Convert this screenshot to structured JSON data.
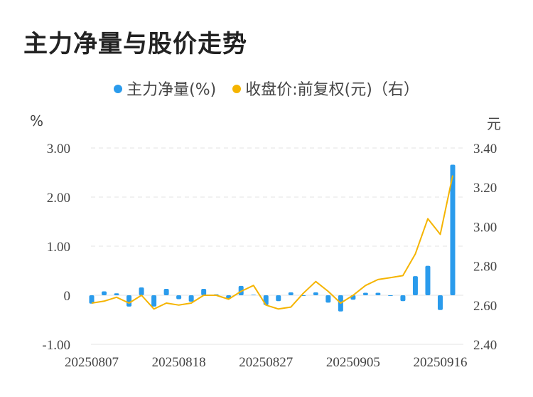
{
  "title": "主力净量与股价走势",
  "legend": {
    "series1": "主力净量(%)",
    "series2": "收盘价:前复权(元)（右）"
  },
  "units": {
    "left": "%",
    "right": "元"
  },
  "colors": {
    "bar": "#2a9bec",
    "line": "#f5b400",
    "grid": "#e3e3e3"
  },
  "chart_data": {
    "type": "bar+line",
    "x_ticks": [
      "20250807",
      "20250818",
      "20250827",
      "20250905",
      "20250916"
    ],
    "x_tick_positions": [
      0,
      7,
      14,
      21,
      28
    ],
    "y_left_ticks": [
      "3.00",
      "2.00",
      "1.00",
      "0",
      "-1.00"
    ],
    "y_left_range": [
      -1.0,
      3.0
    ],
    "y_right_ticks": [
      "3.40",
      "3.20",
      "3.00",
      "2.80",
      "2.60",
      "2.40"
    ],
    "y_right_range": [
      2.4,
      3.4
    ],
    "series": [
      {
        "name": "主力净量(%)",
        "type": "bar",
        "axis": "left",
        "values": [
          -0.17,
          0.08,
          0.04,
          -0.23,
          0.16,
          -0.23,
          0.13,
          -0.08,
          -0.13,
          0.13,
          0.02,
          -0.07,
          0.19,
          0.01,
          -0.2,
          -0.12,
          0.06,
          0.0,
          0.06,
          -0.15,
          -0.33,
          -0.09,
          0.05,
          0.05,
          0.0,
          -0.12,
          0.39,
          0.6,
          -0.3,
          2.66
        ]
      },
      {
        "name": "收盘价:前复权(元)（右）",
        "type": "line",
        "axis": "right",
        "values": [
          2.61,
          2.62,
          2.64,
          2.61,
          2.65,
          2.58,
          2.61,
          2.6,
          2.61,
          2.65,
          2.65,
          2.63,
          2.67,
          2.7,
          2.6,
          2.58,
          2.59,
          2.66,
          2.72,
          2.67,
          2.61,
          2.65,
          2.7,
          2.73,
          2.74,
          2.75,
          2.86,
          3.04,
          2.96,
          3.26
        ]
      }
    ]
  }
}
